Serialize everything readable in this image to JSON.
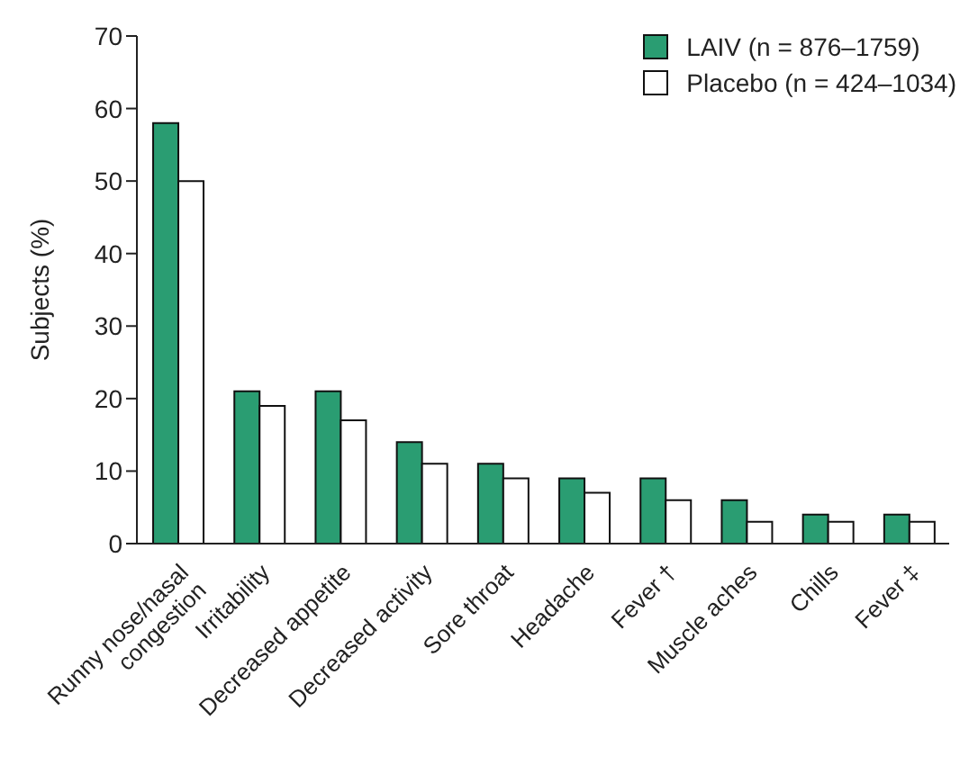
{
  "chart_data": {
    "type": "bar",
    "ylabel": "Subjects (%)",
    "categories": [
      "Runny nose/nasal\ncongestion",
      "Irritability",
      "Decreased appetite",
      "Decreased activity",
      "Sore throat",
      "Headache",
      "Fever †",
      "Muscle aches",
      "Chills",
      "Fever ‡"
    ],
    "series": [
      {
        "name": "LAIV (n = 876–1759)",
        "color": "#2a9d72",
        "values": [
          58,
          21,
          21,
          14,
          11,
          9,
          9,
          6,
          4,
          4
        ]
      },
      {
        "name": "Placebo (n = 424–1034)",
        "color": "#ffffff",
        "values": [
          50,
          19,
          17,
          11,
          9,
          7,
          6,
          3,
          3,
          3
        ]
      }
    ],
    "ylim": [
      0,
      70
    ],
    "yticks": [
      0,
      10,
      20,
      30,
      40,
      50,
      60,
      70
    ],
    "grid": false,
    "legend": "top right"
  }
}
